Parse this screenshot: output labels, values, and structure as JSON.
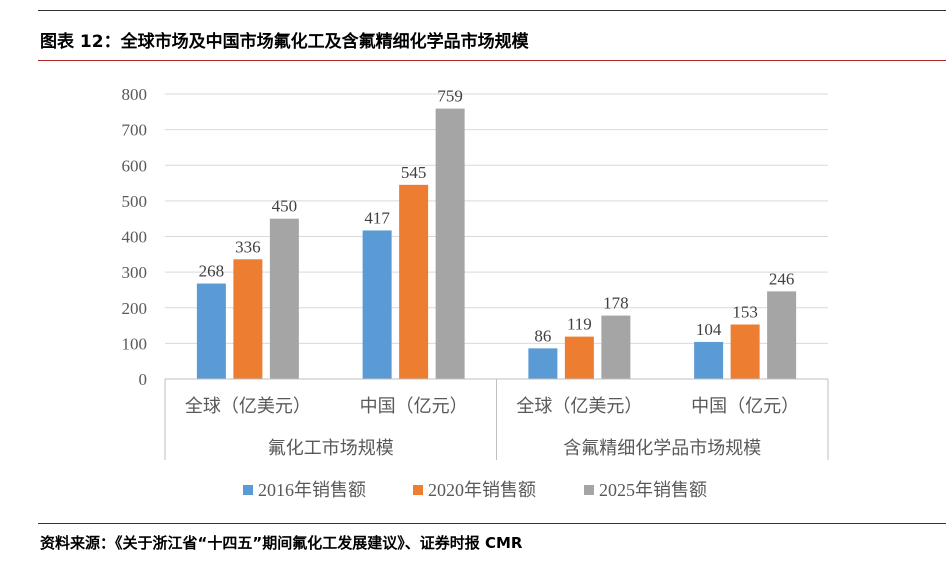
{
  "header": {
    "title": "图表 12：全球市场及中国市场氟化工及含氟精细化学品市场规模"
  },
  "footer": {
    "source": "资料来源：《关于浙江省“十四五”期间氟化工发展建议》、证券时报 CMR"
  },
  "chart_data": {
    "type": "bar",
    "title": "",
    "xlabel": "",
    "ylabel": "",
    "ylim": [
      0,
      800
    ],
    "yticks": [
      0,
      100,
      200,
      300,
      400,
      500,
      600,
      700,
      800
    ],
    "grid": true,
    "legend_position": "bottom",
    "groups": [
      {
        "label": "氟化工市场规模",
        "categories": [
          "全球（亿美元）",
          "中国（亿元）"
        ]
      },
      {
        "label": "含氟精细化学品市场规模",
        "categories": [
          "全球（亿美元）",
          "中国（亿元）"
        ]
      }
    ],
    "categories": [
      "全球（亿美元）",
      "中国（亿元）",
      "全球（亿美元）",
      "中国（亿元）"
    ],
    "series": [
      {
        "name": "2016年销售额",
        "color": "#5b9bd5",
        "values": [
          268,
          417,
          86,
          104
        ]
      },
      {
        "name": "2020年销售额",
        "color": "#ed7d31",
        "values": [
          336,
          545,
          119,
          153
        ]
      },
      {
        "name": "2025年销售额",
        "color": "#a5a5a5",
        "values": [
          450,
          759,
          178,
          246
        ]
      }
    ]
  }
}
